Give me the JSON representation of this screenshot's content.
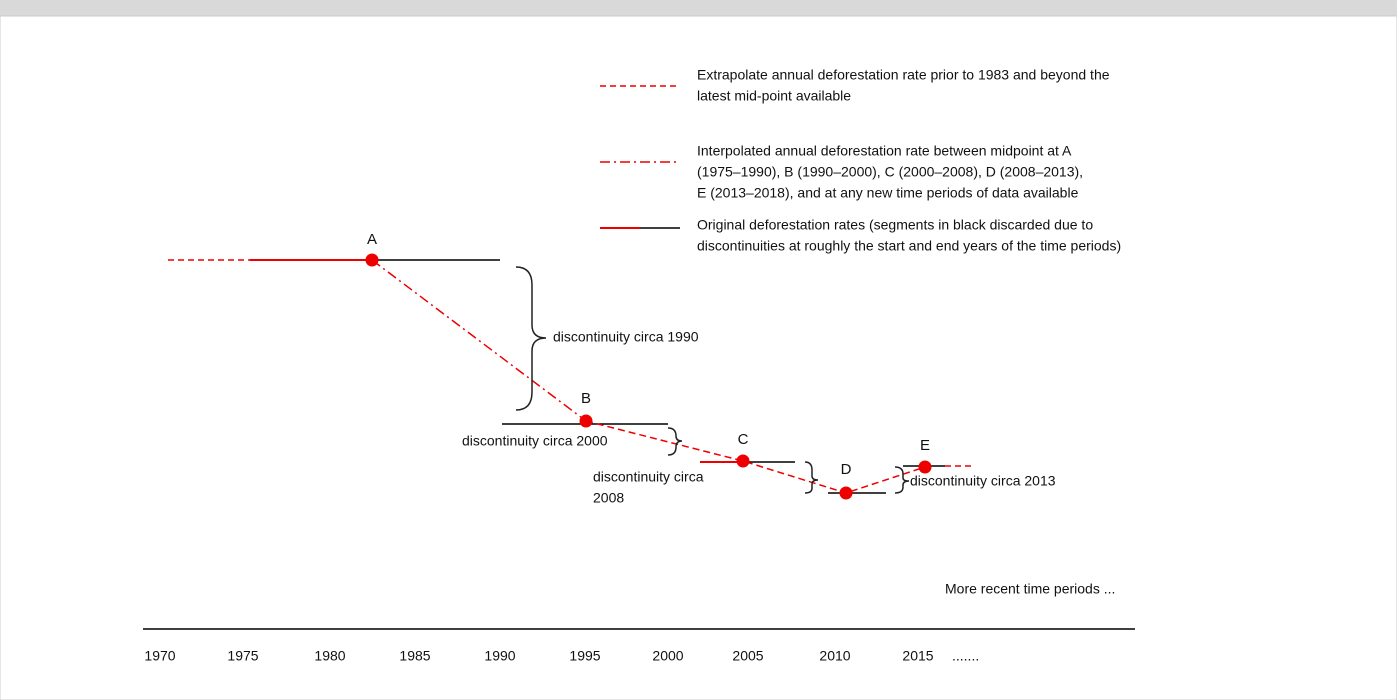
{
  "legend": [
    {
      "lines": [
        "Extrapolate annual deforestation rate prior to 1983 and beyond the",
        "latest mid-point available"
      ]
    },
    {
      "lines": [
        "Interpolated annual deforestation rate between midpoint at A",
        "(1975–1990), B (1990–2000), C (2000–2008), D (2008–2013),",
        "E  (2013–2018), and at any new time periods of data available"
      ]
    },
    {
      "lines": [
        "Original deforestation rates (segments in black discarded due to",
        "discontinuities at roughly the start and end years of the time periods)"
      ]
    }
  ],
  "points": [
    "A",
    "B",
    "C",
    "D",
    "E"
  ],
  "discontinuities": [
    {
      "lines": [
        "discontinuity circa 1990"
      ]
    },
    {
      "lines": [
        "discontinuity circa 2000"
      ]
    },
    {
      "lines": [
        "discontinuity circa",
        "2008"
      ]
    },
    {
      "lines": [
        "discontinuity circa 2013"
      ]
    }
  ],
  "axis": {
    "years": [
      1970,
      1975,
      1980,
      1985,
      1990,
      1995,
      2000,
      2005,
      2010,
      2015
    ],
    "continuation": "......."
  },
  "note": "More recent time periods ..."
}
